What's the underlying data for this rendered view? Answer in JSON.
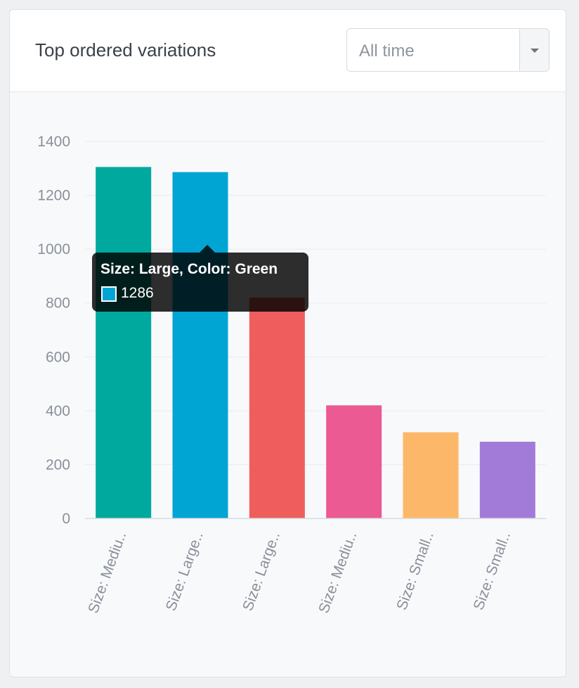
{
  "header": {
    "title": "Top ordered variations",
    "range_select": {
      "value": "All time"
    }
  },
  "chart_data": {
    "type": "bar",
    "categories": [
      "Size: Mediu..",
      "Size: Large..",
      "Size: Large..",
      "Size: Mediu..",
      "Size: Small..",
      "Size: Small.."
    ],
    "values": [
      1305,
      1286,
      820,
      420,
      320,
      285
    ],
    "colors": [
      "#00a99d",
      "#00a5d4",
      "#ef5e5d",
      "#eb5a93",
      "#fdb768",
      "#a27bd8"
    ],
    "ylim": [
      0,
      1400
    ],
    "yticks": [
      "0",
      "200",
      "400",
      "600",
      "800",
      "1000",
      "1200",
      "1400"
    ],
    "grid": true,
    "xlabel": "",
    "ylabel": ""
  },
  "tooltip": {
    "title": "Size: Large, Color: Green",
    "value": "1286",
    "swatch_color": "#00a5d4"
  }
}
